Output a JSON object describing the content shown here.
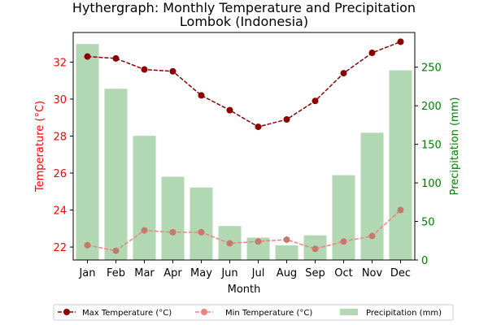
{
  "chart_data": {
    "type": "bar+line",
    "title_line1": "Hythergraph: Monthly Temperature and Precipitation",
    "title_line2": "Lombok (Indonesia)",
    "xlabel": "Month",
    "ylabel_left": "Temperature (°C)",
    "ylabel_right": "Precipitation (mm)",
    "categories": [
      "Jan",
      "Feb",
      "Mar",
      "Apr",
      "May",
      "Jun",
      "Jul",
      "Aug",
      "Sep",
      "Oct",
      "Nov",
      "Dec"
    ],
    "temp_ylim": [
      21.3,
      33.6
    ],
    "temp_ticks": [
      22,
      24,
      26,
      28,
      30,
      32
    ],
    "precip_ylim": [
      0,
      295
    ],
    "precip_ticks": [
      0,
      50,
      100,
      150,
      200,
      250
    ],
    "series": [
      {
        "name": "Max Temperature (°C)",
        "axis": "left",
        "kind": "line",
        "values": [
          32.3,
          32.2,
          31.6,
          31.5,
          30.2,
          29.4,
          28.5,
          28.9,
          29.9,
          31.4,
          32.5,
          33.1
        ]
      },
      {
        "name": "Min Temperature (°C)",
        "axis": "left",
        "kind": "line",
        "values": [
          22.1,
          21.8,
          22.9,
          22.8,
          22.8,
          22.2,
          22.3,
          22.4,
          21.9,
          22.3,
          22.6,
          24.0
        ]
      },
      {
        "name": "Precipitation (mm)",
        "axis": "right",
        "kind": "bar",
        "values": [
          280,
          222,
          161,
          108,
          94,
          44,
          29,
          19,
          32,
          110,
          165,
          246
        ]
      }
    ],
    "colors": {
      "max_line": "#8b0000",
      "min_line": "#f08080",
      "min_line_overlay": "#c47a6a",
      "bar": "#b1d8b2",
      "left_axis": "#ff0000",
      "right_axis": "#008000"
    },
    "legend_placement": "bottom-center",
    "grid": false
  }
}
